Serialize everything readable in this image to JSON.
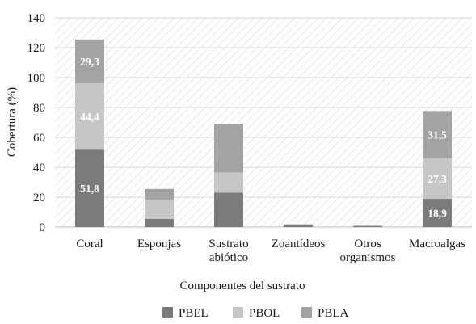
{
  "chart_data": {
    "type": "bar",
    "stacked": true,
    "categories": [
      [
        "Coral"
      ],
      [
        "Esponjas"
      ],
      [
        "Sustrato",
        "abiótico"
      ],
      [
        "Zoantídeos"
      ],
      [
        "Otros",
        "organismos"
      ],
      [
        "Macroalgas"
      ]
    ],
    "series": [
      {
        "name": "PBEL",
        "color": "#7b7b7d",
        "values": [
          51.8,
          5.5,
          23.0,
          1.5,
          0.6,
          18.9
        ]
      },
      {
        "name": "PBOL",
        "color": "#c6c6c8",
        "values": [
          44.4,
          12.5,
          13.5,
          0.2,
          0.2,
          27.3
        ]
      },
      {
        "name": "PBLA",
        "color": "#a3a3a5",
        "values": [
          29.3,
          7.5,
          32.5,
          0.2,
          0.2,
          31.5
        ]
      }
    ],
    "data_labels": [
      [
        "51,8",
        "",
        "",
        "",
        "",
        "18,9"
      ],
      [
        "44,4",
        "",
        "",
        "",
        "",
        "27,3"
      ],
      [
        "29,3",
        "",
        "",
        "",
        "",
        "31,5"
      ]
    ],
    "ylabel": "Cobertura (%)",
    "xlabel": "Componentes del sustrato",
    "ylim": [
      0,
      140
    ],
    "yticks": [
      0,
      20,
      40,
      60,
      80,
      100,
      120,
      140
    ],
    "grid": true,
    "legend_position": "bottom"
  }
}
